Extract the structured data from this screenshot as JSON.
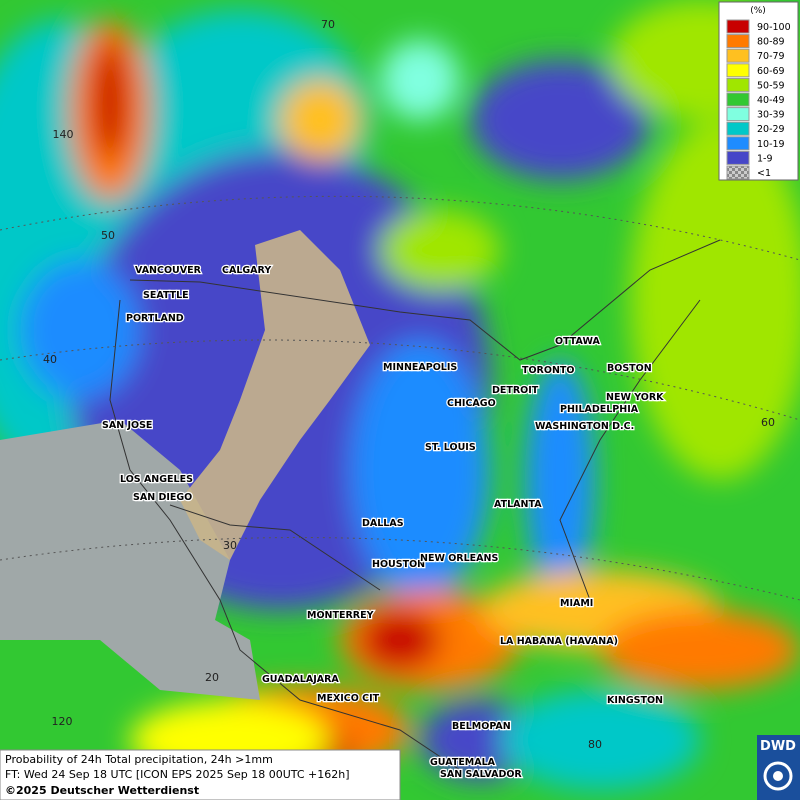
{
  "legend": {
    "title": "(%)",
    "items": [
      {
        "label": "90-100",
        "color": "#c80000"
      },
      {
        "label": "80-89",
        "color": "#ff7a00"
      },
      {
        "label": "70-79",
        "color": "#ffc020"
      },
      {
        "label": "60-69",
        "color": "#ffff00"
      },
      {
        "label": "50-59",
        "color": "#a0e600"
      },
      {
        "label": "40-49",
        "color": "#32c832"
      },
      {
        "label": "30-39",
        "color": "#80ffe0"
      },
      {
        "label": "20-29",
        "color": "#00c8c8"
      },
      {
        "label": "10-19",
        "color": "#1e8cff"
      },
      {
        "label": "1-9",
        "color": "#4646c8"
      },
      {
        "label": "<1",
        "color": "#a0a0a0"
      }
    ]
  },
  "cities": [
    "VANCOUVER",
    "CALGARY",
    "SEATTLE",
    "PORTLAND",
    "SAN JOSE",
    "LOS ANGELES",
    "SAN DIEGO",
    "MINNEAPOLIS",
    "CHICAGO",
    "DETROIT",
    "TORONTO",
    "OTTAWA",
    "BOSTON",
    "NEW YORK",
    "PHILADELPHIA",
    "WASHINGTON D.C.",
    "ST. LOUIS",
    "DALLAS",
    "ATLANTA",
    "HOUSTON",
    "NEW ORLEANS",
    "MIAMI",
    "MONTERREY",
    "LA HABANA (HAVANA)",
    "GUADALAJARA",
    "MEXICO CIT",
    "KINGSTON",
    "BELMOPAN",
    "GUATEMALA",
    "SAN SALVADOR"
  ],
  "graticule": [
    "70",
    "140",
    "50",
    "40",
    "60",
    "30",
    "20",
    "120",
    "80"
  ],
  "caption": [
    "Probability of 24h Total precipitation, 24h >1mm",
    "FT: Wed 24 Sep 18 UTC [ICON EPS 2025 Sep 18 00UTC +162h]",
    "©2025 Deutscher Wetterdienst"
  ],
  "logo": "DWD"
}
